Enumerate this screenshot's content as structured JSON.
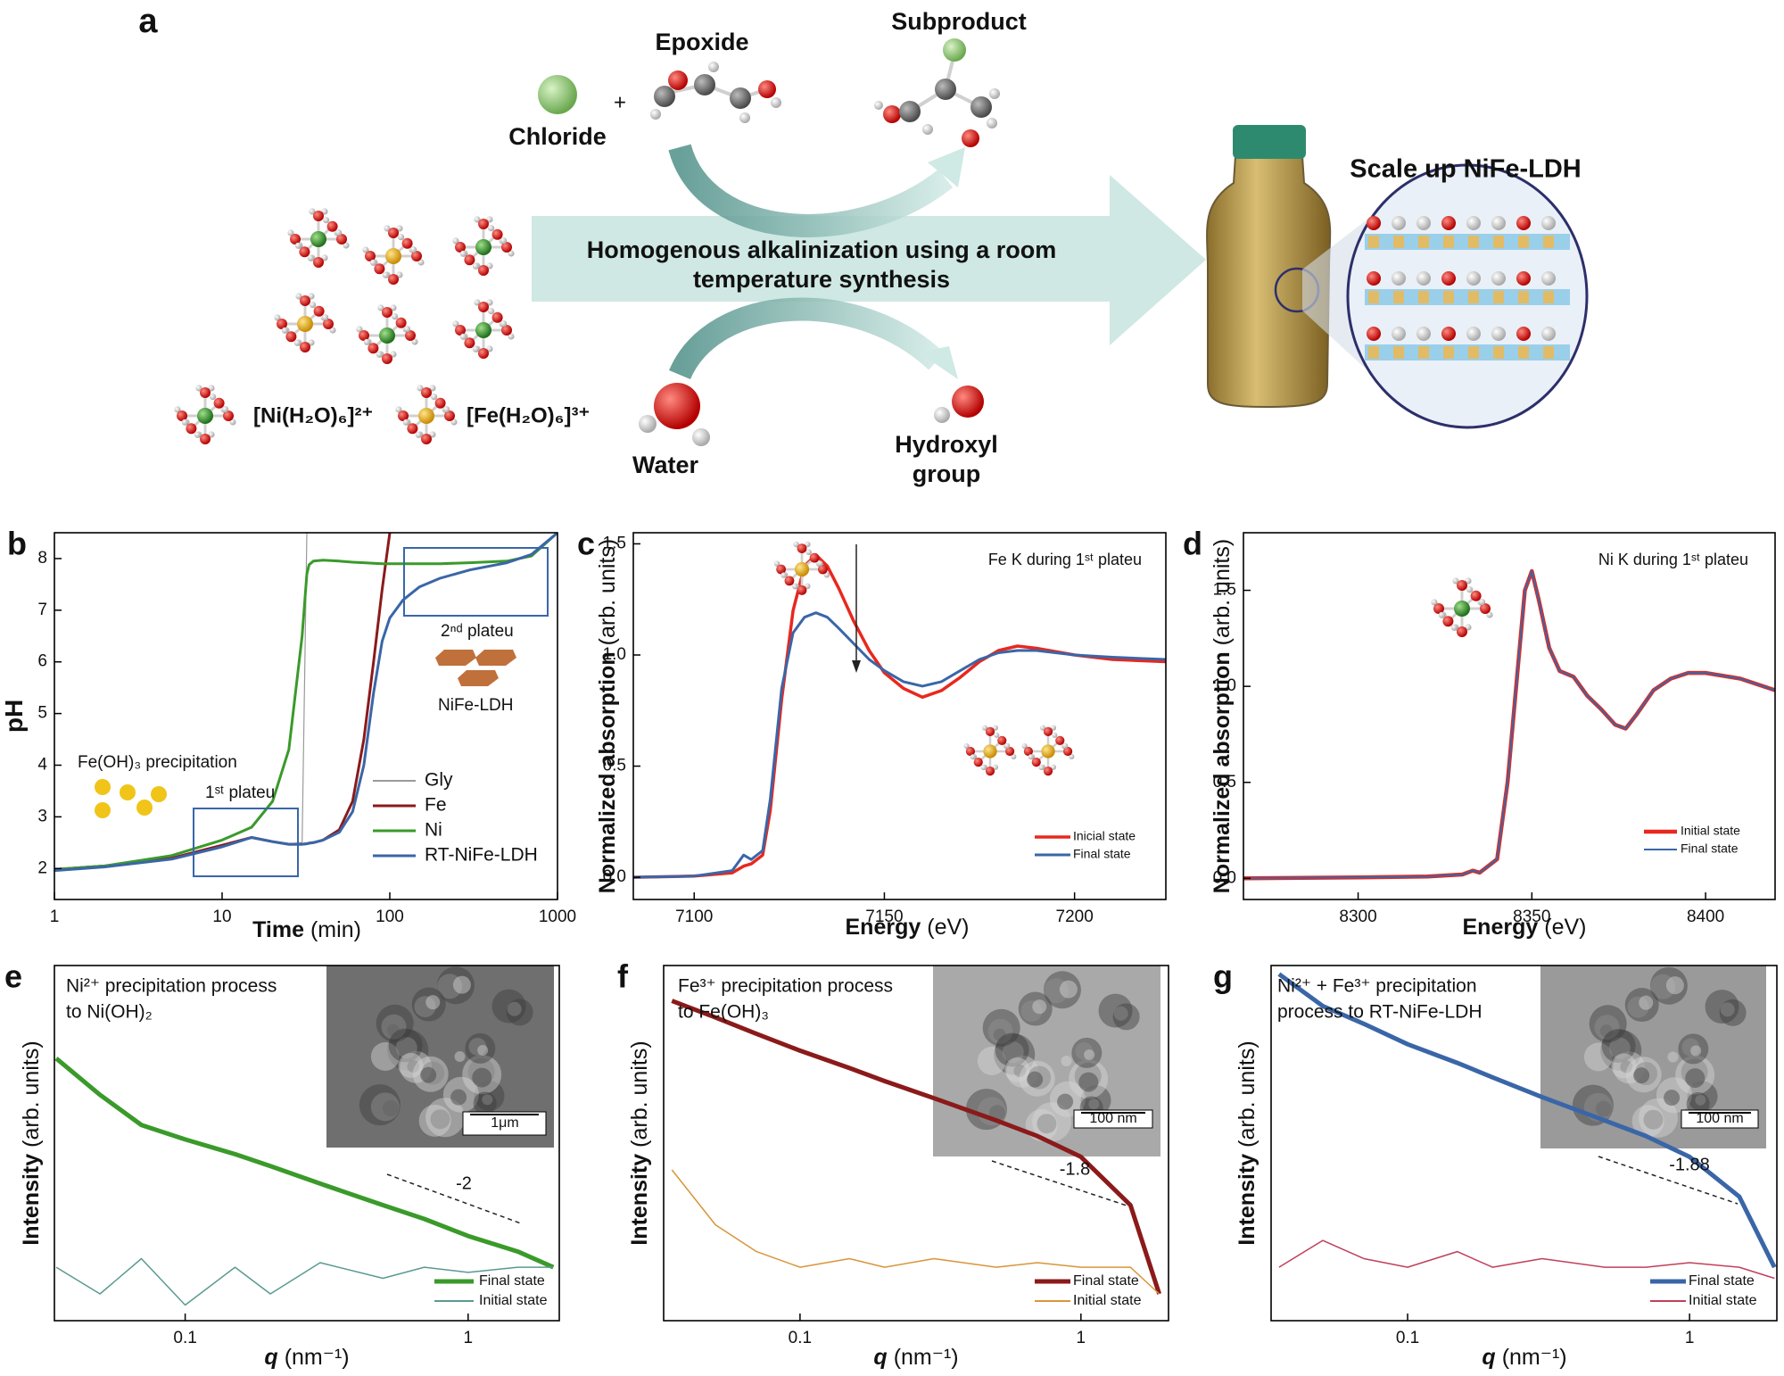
{
  "diagram": {
    "label": "a",
    "chloride": "Chloride",
    "plus": "+",
    "epoxide": "Epoxide",
    "subproduct": "Subproduct",
    "arrow_text": [
      "Homogenous alkalinization using a room",
      "temperature synthesis"
    ],
    "water": "Water",
    "hydroxyl": [
      "Hydroxyl",
      "group"
    ],
    "ni_complex": "[Ni(H₂O)₆]²⁺",
    "fe_complex": "[Fe(H₂O)₆]³⁺",
    "scale_up": "Scale up NiFe-LDH"
  },
  "chart_data": [
    {
      "type": "line",
      "label": "b",
      "ylabel": "pH",
      "xlabel": {
        "main": "Time",
        "unit": "(min)"
      },
      "xscale": "log",
      "xlim": [
        1,
        1000
      ],
      "xticks": [
        1,
        10,
        100,
        1000
      ],
      "ylim": [
        1.4,
        8.5
      ],
      "yticks": [
        2,
        3,
        4,
        5,
        6,
        7,
        8
      ],
      "legend": "lower right",
      "x": [
        1,
        2,
        5,
        10,
        15,
        20,
        25,
        30,
        32,
        33,
        35,
        40,
        50,
        60,
        70,
        80,
        90,
        100,
        120,
        150,
        200,
        300,
        500,
        700,
        1000
      ],
      "series": [
        {
          "name": "Gly",
          "color": "#9a9a9a",
          "linewidth": 1.2,
          "values": [
            1.98,
            2.05,
            2.2,
            2.45,
            2.6,
            2.52,
            2.48,
            2.5,
            8.5,
            null,
            null,
            null,
            null,
            null,
            null,
            null,
            null,
            null,
            null,
            null,
            null,
            null,
            null,
            null,
            null
          ]
        },
        {
          "name": "Fe",
          "color": "#8b1a1a",
          "linewidth": 3,
          "values": [
            1.98,
            2.05,
            2.2,
            2.45,
            2.6,
            2.52,
            2.47,
            2.47,
            2.48,
            2.49,
            2.5,
            2.55,
            2.75,
            3.3,
            4.5,
            6.0,
            7.4,
            8.5,
            null,
            null,
            null,
            null,
            null,
            null,
            null
          ]
        },
        {
          "name": "Ni",
          "color": "#3a9a2a",
          "linewidth": 3,
          "values": [
            1.98,
            2.05,
            2.25,
            2.55,
            2.8,
            3.3,
            4.3,
            6.5,
            7.7,
            7.88,
            7.95,
            7.97,
            7.95,
            7.93,
            7.92,
            7.91,
            7.9,
            7.9,
            7.9,
            7.9,
            7.9,
            7.92,
            7.95,
            8.05,
            8.5
          ]
        },
        {
          "name": "RT-NiFe-LDH",
          "color": "#3a66a8",
          "linewidth": 3,
          "values": [
            1.96,
            2.03,
            2.18,
            2.42,
            2.6,
            2.52,
            2.47,
            2.47,
            2.48,
            2.49,
            2.5,
            2.55,
            2.7,
            3.1,
            4.0,
            5.4,
            6.4,
            6.85,
            7.2,
            7.45,
            7.62,
            7.78,
            7.92,
            8.08,
            8.5
          ]
        }
      ],
      "annotations": [
        "Fe(OH)₃ precipitation",
        "1ˢᵗ plateu",
        "2ⁿᵈ plateu",
        "NiFe-LDH"
      ]
    },
    {
      "type": "line",
      "label": "c",
      "ylabel": {
        "main": "Normalized absorption",
        "unit": "(arb. units)"
      },
      "xlabel": {
        "main": "Energy",
        "unit": "(eV)"
      },
      "xlim": [
        7084,
        7224
      ],
      "xticks": [
        7100,
        7150,
        7200
      ],
      "ylim": [
        -0.1,
        1.55
      ],
      "yticks": [
        {
          "value": 0,
          "label": "0.0"
        },
        {
          "value": 0.5,
          "label": "0.5"
        },
        {
          "value": 1,
          "label": "1.0"
        },
        {
          "value": 1.5,
          "label": "1.5"
        }
      ],
      "legend": "lower right",
      "x": [
        7084,
        7100,
        7110,
        7113,
        7115,
        7118,
        7120,
        7123,
        7126,
        7129,
        7132,
        7135,
        7138,
        7142,
        7146,
        7150,
        7155,
        7160,
        7165,
        7170,
        7175,
        7180,
        7185,
        7190,
        7200,
        7210,
        7224
      ],
      "series": [
        {
          "name": "Inicial state",
          "color": "#e8281e",
          "linewidth": 3.5,
          "values": [
            0,
            0.005,
            0.02,
            0.05,
            0.06,
            0.1,
            0.3,
            0.8,
            1.2,
            1.4,
            1.45,
            1.4,
            1.3,
            1.15,
            1.02,
            0.92,
            0.85,
            0.81,
            0.84,
            0.9,
            0.97,
            1.02,
            1.04,
            1.03,
            1.0,
            0.98,
            0.97
          ]
        },
        {
          "name": "Final state",
          "color": "#3a66a8",
          "linewidth": 3,
          "values": [
            0,
            0.005,
            0.03,
            0.1,
            0.08,
            0.12,
            0.35,
            0.85,
            1.1,
            1.17,
            1.19,
            1.17,
            1.12,
            1.05,
            0.98,
            0.93,
            0.88,
            0.86,
            0.88,
            0.93,
            0.98,
            1.01,
            1.02,
            1.02,
            1.0,
            0.99,
            0.98
          ]
        }
      ],
      "annotations": [
        "Fe K during 1ˢᵗ plateu"
      ]
    },
    {
      "type": "line",
      "label": "d",
      "ylabel": {
        "main": "Normalized absorption",
        "unit": "(arb. units)"
      },
      "xlabel": {
        "main": "Energy",
        "unit": "(eV)"
      },
      "xlim": [
        8267,
        8420
      ],
      "xticks": [
        8300,
        8350,
        8400
      ],
      "ylim": [
        -0.11,
        1.8
      ],
      "yticks": [
        {
          "value": 0,
          "label": "0.0"
        },
        {
          "value": 0.5,
          "label": "0.5"
        },
        {
          "value": 1,
          "label": "1.0"
        },
        {
          "value": 1.5,
          "label": "1.5"
        }
      ],
      "legend": "lower right",
      "x": [
        8267,
        8300,
        8320,
        8330,
        8333,
        8335,
        8340,
        8343,
        8346,
        8348,
        8350,
        8352,
        8355,
        8358,
        8362,
        8366,
        8370,
        8374,
        8377,
        8380,
        8385,
        8390,
        8395,
        8400,
        8410,
        8420
      ],
      "series": [
        {
          "name": "Initial state",
          "color": "#e8281e",
          "linewidth": 4.5,
          "values": [
            0,
            0.005,
            0.01,
            0.02,
            0.04,
            0.03,
            0.1,
            0.5,
            1.1,
            1.5,
            1.6,
            1.45,
            1.2,
            1.08,
            1.05,
            0.95,
            0.88,
            0.8,
            0.78,
            0.85,
            0.98,
            1.04,
            1.07,
            1.07,
            1.04,
            0.98
          ]
        },
        {
          "name": "Final state",
          "color": "#3a66a8",
          "linewidth": 2,
          "values": [
            0,
            0.005,
            0.01,
            0.02,
            0.04,
            0.03,
            0.1,
            0.5,
            1.1,
            1.5,
            1.6,
            1.45,
            1.2,
            1.08,
            1.05,
            0.95,
            0.88,
            0.8,
            0.78,
            0.85,
            0.98,
            1.04,
            1.07,
            1.07,
            1.04,
            0.98
          ]
        }
      ],
      "annotations": [
        "Ni K during 1ˢᵗ plateu"
      ]
    },
    {
      "type": "line",
      "label": "e",
      "ylabel": {
        "main": "Intensity",
        "unit": "(arb. units)"
      },
      "xlabel": {
        "main": "q",
        "unit": "(nm⁻¹)"
      },
      "xscale": "log",
      "yscale": "log",
      "xlim": [
        0.0345,
        2.1
      ],
      "xticks": [
        0.1,
        1
      ],
      "ylim": [
        0.001,
        10
      ],
      "legend": "lower right",
      "x": [
        0.035,
        0.05,
        0.07,
        0.1,
        0.15,
        0.2,
        0.3,
        0.5,
        0.7,
        1,
        1.5,
        2
      ],
      "series": [
        {
          "name": "Final state",
          "color": "#3a9a2a",
          "linewidth": 5,
          "values": [
            0.9,
            0.35,
            0.16,
            0.11,
            0.075,
            0.055,
            0.035,
            0.02,
            0.014,
            0.009,
            0.006,
            0.004
          ]
        },
        {
          "name": "Initial state",
          "color": "#5a9a90",
          "linewidth": 1.5,
          "values": [
            0.004,
            0.002,
            0.005,
            0.0015,
            0.004,
            0.002,
            0.0045,
            0.003,
            0.004,
            0.0035,
            0.004,
            0.004
          ]
        }
      ],
      "annotations": [
        "Ni²⁺ precipitation process",
        "to Ni(OH)₂",
        "-2",
        "1μm"
      ]
    },
    {
      "type": "line",
      "label": "f",
      "ylabel": {
        "main": "Intensity",
        "unit": "(arb. units)"
      },
      "xlabel": {
        "main": "q",
        "unit": "(nm⁻¹)"
      },
      "xscale": "log",
      "yscale": "log",
      "xlim": [
        0.0327,
        2.05
      ],
      "xticks": [
        0.1,
        1
      ],
      "ylim": [
        0.001,
        10
      ],
      "legend": "lower right",
      "x": [
        0.035,
        0.05,
        0.07,
        0.1,
        0.15,
        0.2,
        0.3,
        0.5,
        0.7,
        1,
        1.5,
        1.9
      ],
      "series": [
        {
          "name": "Final state",
          "color": "#8b1a1a",
          "linewidth": 5,
          "values": [
            4,
            2.6,
            1.7,
            1.1,
            0.7,
            0.5,
            0.32,
            0.18,
            0.12,
            0.07,
            0.02,
            0.002
          ]
        },
        {
          "name": "Initial state",
          "color": "#d9953a",
          "linewidth": 1.5,
          "values": [
            0.05,
            0.012,
            0.006,
            0.004,
            0.005,
            0.004,
            0.005,
            0.004,
            0.0045,
            0.004,
            0.004,
            0.002
          ]
        }
      ],
      "annotations": [
        "Fe³⁺ precipitation process",
        "to Fe(OH)₃",
        "-1.8",
        "100 nm"
      ]
    },
    {
      "type": "line",
      "label": "g",
      "ylabel": {
        "main": "Intensity",
        "unit": "(arb. units)"
      },
      "xlabel": {
        "main": "q",
        "unit": "(nm⁻¹)"
      },
      "xscale": "log",
      "yscale": "log",
      "xlim": [
        0.0328,
        2.04
      ],
      "xticks": [
        0.1,
        1
      ],
      "ylim": [
        0.001,
        10
      ],
      "legend": "lower right",
      "x": [
        0.035,
        0.05,
        0.07,
        0.1,
        0.15,
        0.2,
        0.3,
        0.5,
        0.7,
        1,
        1.5,
        2
      ],
      "series": [
        {
          "name": "Final state",
          "color": "#3a66a8",
          "linewidth": 5,
          "values": [
            8,
            3.5,
            2.2,
            1.3,
            0.8,
            0.55,
            0.33,
            0.18,
            0.12,
            0.07,
            0.025,
            0.004
          ]
        },
        {
          "name": "Initial state",
          "color": "#c0405a",
          "linewidth": 1.5,
          "values": [
            0.004,
            0.008,
            0.005,
            0.004,
            0.006,
            0.004,
            0.005,
            0.004,
            0.004,
            0.0045,
            0.004,
            0.003
          ]
        }
      ],
      "annotations": [
        "Ni²⁺ + Fe³⁺ precipitation",
        "process to RT-NiFe-LDH",
        "-1.88",
        "100 nm"
      ]
    }
  ]
}
